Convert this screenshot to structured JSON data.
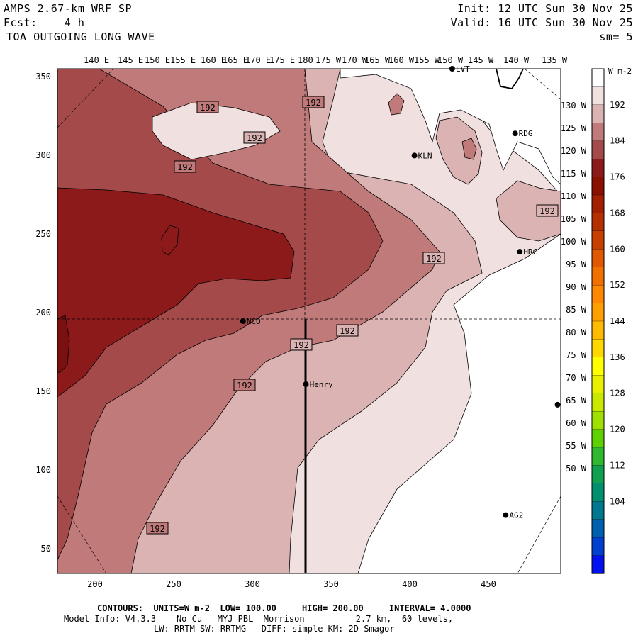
{
  "header": {
    "title": "AMPS 2.67-km WRF SP",
    "fcst_label": "Fcst:",
    "fcst_value": "4 h",
    "field": "TOA OUTGOING LONG WAVE",
    "init_label": "Init:",
    "init_value": "12 UTC Sun 30 Nov 25",
    "valid_label": "Valid:",
    "valid_value": "16 UTC Sun 30 Nov 25",
    "smoothing": "sm= 5"
  },
  "longitude_labels": [
    "140 E",
    "145 E",
    "150 E",
    "155 E",
    "160 E",
    "165 E",
    "170 E",
    "175 E",
    "180",
    "175 W",
    "170 W",
    "165 W",
    "160 W",
    "155 W",
    "150 W",
    "145 W",
    "140 W",
    "135 W"
  ],
  "latitude_labels": [
    "130 W",
    "125 W",
    "120 W",
    "115 W",
    "110 W",
    "105 W",
    "100 W",
    "95 W",
    "90 W",
    "85 W",
    "80 W",
    "75 W",
    "70 W",
    "65 W",
    "60 W",
    "55 W",
    "50 W"
  ],
  "x_axis": {
    "ticks": [
      "200",
      "250",
      "300",
      "350",
      "400",
      "450"
    ],
    "range": [
      175,
      495
    ]
  },
  "y_axis": {
    "ticks": [
      "50",
      "100",
      "150",
      "200",
      "250",
      "300",
      "350"
    ],
    "range": [
      35,
      355
    ]
  },
  "contour_label": "192",
  "stations": [
    {
      "name": "LVT",
      "x": 426,
      "y": 355
    },
    {
      "name": "RDG",
      "x": 466,
      "y": 314
    },
    {
      "name": "KLN",
      "x": 402,
      "y": 300
    },
    {
      "name": "HRC",
      "x": 469,
      "y": 239
    },
    {
      "name": "NCO",
      "x": 293,
      "y": 195
    },
    {
      "name": "Henry",
      "x": 333,
      "y": 155
    },
    {
      "name": "AG2",
      "x": 460,
      "y": 72
    },
    {
      "name": "",
      "x": 493,
      "y": 142
    }
  ],
  "colorbar": {
    "unit": "W m-2",
    "labels": [
      "192",
      "184",
      "176",
      "168",
      "160",
      "152",
      "144",
      "136",
      "128",
      "120",
      "112",
      "104"
    ],
    "colors": [
      "#ffffff",
      "#f0e0e0",
      "#dbb3b3",
      "#c07a7a",
      "#a44a4a",
      "#8c1a1a",
      "#8a1000",
      "#a22000",
      "#b43000",
      "#c84000",
      "#e05800",
      "#f07000",
      "#ff8800",
      "#ffa000",
      "#ffbb00",
      "#ffd800",
      "#ffff00",
      "#e8f000",
      "#c8e800",
      "#a0e000",
      "#60d000",
      "#30b830",
      "#10a050",
      "#009070",
      "#007890",
      "#0060b0",
      "#0040d0",
      "#0010f0"
    ]
  },
  "footer": {
    "contours_label": "CONTOURS:",
    "units_label": "UNITS=",
    "units_value": "W m-2",
    "low_label": "LOW=",
    "low_value": "100.00",
    "high_label": "HIGH=",
    "high_value": "200.00",
    "interval_label": "INTERVAL=",
    "interval_value": "4.0000",
    "model_info": "Model Info: V4.3.3    No Cu   MYJ PBL  Morrison          2.7 km,  60 levels,",
    "physics_info": "LW: RRTM SW: RRTMG   DIFF: simple KM: 2D Smagor"
  }
}
